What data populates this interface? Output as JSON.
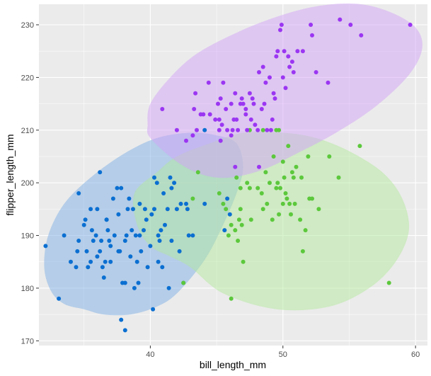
{
  "chart_data": {
    "type": "scatter",
    "title": "",
    "xlabel": "bill_length_mm",
    "ylabel": "flipper_length_mm",
    "xlim": [
      31.6,
      60.9
    ],
    "ylim": [
      169.1,
      233.9
    ],
    "x_ticks": [
      40,
      50,
      60
    ],
    "y_ticks": [
      170,
      180,
      190,
      200,
      210,
      220,
      230
    ],
    "x_tick_labels": [
      "40",
      "50",
      "60"
    ],
    "y_tick_labels": [
      "170",
      "180",
      "190",
      "200",
      "210",
      "220",
      "230"
    ],
    "grid": true,
    "legend": "none",
    "colors": {
      "panel_background": "#ebebeb",
      "grid_major": "#ffffff",
      "tick": "#333333",
      "blue": "#0b6fd1",
      "green": "#5cc83c",
      "purple": "#9b36f2",
      "ellipse_blue": "#7fb0e6",
      "ellipse_green": "#b3ea9e",
      "ellipse_purple": "#d2a4f7"
    },
    "ellipses": [
      {
        "name": "blue",
        "color": "ellipse_blue",
        "center": [
          38.8,
          190.0
        ],
        "points": [
          [
            35.0,
            176.0
          ],
          [
            36.5,
            175.0
          ],
          [
            38.5,
            175.0
          ],
          [
            40.5,
            176.5
          ],
          [
            42.0,
            179.0
          ],
          [
            44.0,
            185.0
          ],
          [
            45.3,
            191.0
          ],
          [
            46.5,
            198.0
          ],
          [
            47.0,
            203.0
          ],
          [
            46.5,
            207.5
          ],
          [
            45.0,
            209.0
          ],
          [
            43.0,
            209.5
          ],
          [
            40.5,
            208.5
          ],
          [
            38.0,
            205.5
          ],
          [
            35.5,
            201.0
          ],
          [
            33.5,
            196.0
          ],
          [
            32.3,
            190.0
          ],
          [
            32.0,
            184.0
          ],
          [
            32.5,
            179.5
          ],
          [
            33.5,
            177.0
          ]
        ]
      },
      {
        "name": "green",
        "color": "ellipse_green",
        "center": [
          48.8,
          193.0
        ],
        "points": [
          [
            43.0,
            184.0
          ],
          [
            45.5,
            179.0
          ],
          [
            49.5,
            176.0
          ],
          [
            53.5,
            176.5
          ],
          [
            56.5,
            180.0
          ],
          [
            58.5,
            185.0
          ],
          [
            59.5,
            191.0
          ],
          [
            59.0,
            197.0
          ],
          [
            57.5,
            202.0
          ],
          [
            55.0,
            206.0
          ],
          [
            52.5,
            208.5
          ],
          [
            50.0,
            209.5
          ],
          [
            47.0,
            209.5
          ],
          [
            44.5,
            207.5
          ],
          [
            42.0,
            205.0
          ],
          [
            40.5,
            202.0
          ],
          [
            38.8,
            198.0
          ],
          [
            39.0,
            192.0
          ],
          [
            40.0,
            188.0
          ],
          [
            41.5,
            186.0
          ]
        ]
      },
      {
        "name": "purple",
        "color": "ellipse_purple",
        "center": [
          48.3,
          216.9
        ],
        "points": [
          [
            40.0,
            208.5
          ],
          [
            42.0,
            204.0
          ],
          [
            44.0,
            201.5
          ],
          [
            46.0,
            201.0
          ],
          [
            48.5,
            202.5
          ],
          [
            51.0,
            205.5
          ],
          [
            54.0,
            209.5
          ],
          [
            57.0,
            214.5
          ],
          [
            59.5,
            220.5
          ],
          [
            60.5,
            225.5
          ],
          [
            60.0,
            229.5
          ],
          [
            58.0,
            232.5
          ],
          [
            55.5,
            234.0
          ],
          [
            52.5,
            233.5
          ],
          [
            49.5,
            231.5
          ],
          [
            46.5,
            228.5
          ],
          [
            43.5,
            224.5
          ],
          [
            41.5,
            220.0
          ],
          [
            40.0,
            215.0
          ],
          [
            39.8,
            211.0
          ]
        ]
      }
    ],
    "series": [
      {
        "name": "blue",
        "color": "blue",
        "points": [
          [
            32.1,
            188
          ],
          [
            33.1,
            178
          ],
          [
            33.5,
            190
          ],
          [
            34.0,
            185
          ],
          [
            34.4,
            184
          ],
          [
            34.5,
            187
          ],
          [
            34.6,
            198
          ],
          [
            34.6,
            189
          ],
          [
            35.0,
            192
          ],
          [
            35.1,
            193
          ],
          [
            35.2,
            187
          ],
          [
            35.3,
            184
          ],
          [
            35.5,
            195
          ],
          [
            35.6,
            191
          ],
          [
            35.7,
            189
          ],
          [
            35.9,
            190
          ],
          [
            36.0,
            195
          ],
          [
            36.0,
            186
          ],
          [
            36.2,
            202
          ],
          [
            36.2,
            187
          ],
          [
            36.4,
            184
          ],
          [
            36.5,
            182
          ],
          [
            36.6,
            185
          ],
          [
            36.7,
            193
          ],
          [
            36.8,
            191
          ],
          [
            36.9,
            189
          ],
          [
            37.0,
            185
          ],
          [
            37.2,
            197
          ],
          [
            37.3,
            190
          ],
          [
            37.5,
            199
          ],
          [
            37.6,
            194
          ],
          [
            37.7,
            187
          ],
          [
            37.8,
            174
          ],
          [
            37.8,
            199
          ],
          [
            37.9,
            181
          ],
          [
            38.1,
            172
          ],
          [
            38.1,
            181
          ],
          [
            38.2,
            190
          ],
          [
            38.3,
            195
          ],
          [
            38.5,
            186
          ],
          [
            38.6,
            191
          ],
          [
            38.7,
            195
          ],
          [
            38.8,
            180
          ],
          [
            38.9,
            190
          ],
          [
            39.0,
            185
          ],
          [
            39.1,
            181
          ],
          [
            39.2,
            196
          ],
          [
            39.3,
            187
          ],
          [
            39.5,
            191
          ],
          [
            39.6,
            195
          ],
          [
            39.7,
            193
          ],
          [
            39.8,
            184
          ],
          [
            40.0,
            188
          ],
          [
            40.1,
            194
          ],
          [
            40.2,
            176
          ],
          [
            40.3,
            195
          ],
          [
            40.5,
            200
          ],
          [
            40.6,
            185
          ],
          [
            40.7,
            189
          ],
          [
            40.8,
            191
          ],
          [
            40.9,
            184
          ],
          [
            41.0,
            198
          ],
          [
            41.1,
            192
          ],
          [
            41.3,
            195
          ],
          [
            41.4,
            180
          ],
          [
            41.5,
            201
          ],
          [
            41.6,
            189
          ],
          [
            41.8,
            200
          ],
          [
            42.0,
            195
          ],
          [
            42.2,
            187
          ],
          [
            42.3,
            196
          ],
          [
            42.5,
            181
          ],
          [
            42.7,
            196
          ],
          [
            42.8,
            195
          ],
          [
            42.9,
            190
          ],
          [
            43.2,
            190
          ],
          [
            44.1,
            210
          ],
          [
            44.1,
            196
          ],
          [
            45.6,
            191
          ],
          [
            45.8,
            197
          ],
          [
            46.0,
            194
          ],
          [
            39.2,
            190
          ],
          [
            38.1,
            189
          ],
          [
            37.6,
            187
          ],
          [
            36.3,
            189
          ],
          [
            37.0,
            188
          ],
          [
            36.7,
            193
          ],
          [
            40.6,
            190
          ],
          [
            35.5,
            185
          ],
          [
            38.4,
            197
          ],
          [
            41.6,
            199
          ],
          [
            40.3,
            201
          ]
        ]
      },
      {
        "name": "green",
        "color": "green",
        "points": [
          [
            42.5,
            181
          ],
          [
            43.2,
            197
          ],
          [
            43.6,
            202
          ],
          [
            45.2,
            198
          ],
          [
            45.5,
            196
          ],
          [
            45.7,
            195
          ],
          [
            45.9,
            190
          ],
          [
            46.1,
            192
          ],
          [
            46.1,
            178
          ],
          [
            46.4,
            191
          ],
          [
            46.5,
            201
          ],
          [
            46.6,
            189
          ],
          [
            46.7,
            193
          ],
          [
            46.8,
            195
          ],
          [
            46.9,
            192
          ],
          [
            47.0,
            185
          ],
          [
            47.3,
            200
          ],
          [
            47.5,
            199
          ],
          [
            47.6,
            193
          ],
          [
            48.1,
            199
          ],
          [
            48.4,
            198
          ],
          [
            48.5,
            195
          ],
          [
            48.7,
            202
          ],
          [
            48.8,
            196
          ],
          [
            49.0,
            200
          ],
          [
            49.2,
            193
          ],
          [
            49.3,
            205
          ],
          [
            49.5,
            199
          ],
          [
            49.6,
            200
          ],
          [
            49.7,
            194
          ],
          [
            49.8,
            199
          ],
          [
            50.0,
            196
          ],
          [
            50.1,
            201
          ],
          [
            50.2,
            198
          ],
          [
            50.3,
            197
          ],
          [
            50.5,
            196
          ],
          [
            50.6,
            194
          ],
          [
            50.7,
            202
          ],
          [
            50.8,
            201
          ],
          [
            50.9,
            196
          ],
          [
            51.0,
            203
          ],
          [
            51.3,
            193
          ],
          [
            51.4,
            201
          ],
          [
            51.5,
            187
          ],
          [
            51.7,
            191
          ],
          [
            51.9,
            205
          ],
          [
            52.0,
            197
          ],
          [
            52.2,
            197
          ],
          [
            52.7,
            195
          ],
          [
            53.5,
            205
          ],
          [
            54.2,
            201
          ],
          [
            55.8,
            207
          ],
          [
            58.0,
            181
          ],
          [
            49.5,
            210
          ],
          [
            50.4,
            207
          ],
          [
            50.0,
            204
          ],
          [
            48.5,
            210
          ],
          [
            46.8,
            199
          ],
          [
            47.5,
            210
          ],
          [
            49.7,
            210
          ]
        ]
      },
      {
        "name": "purple",
        "color": "purple",
        "points": [
          [
            40.9,
            214
          ],
          [
            42.0,
            210
          ],
          [
            42.7,
            208
          ],
          [
            43.2,
            209
          ],
          [
            43.3,
            214
          ],
          [
            43.4,
            217
          ],
          [
            43.5,
            210
          ],
          [
            43.8,
            213
          ],
          [
            44.4,
            219
          ],
          [
            44.5,
            213
          ],
          [
            44.9,
            212
          ],
          [
            45.1,
            215
          ],
          [
            45.2,
            212
          ],
          [
            45.3,
            216
          ],
          [
            45.4,
            211
          ],
          [
            45.5,
            219
          ],
          [
            45.7,
            214
          ],
          [
            45.8,
            210
          ],
          [
            46.1,
            215
          ],
          [
            46.2,
            210
          ],
          [
            46.3,
            212
          ],
          [
            46.4,
            217
          ],
          [
            46.5,
            212
          ],
          [
            46.6,
            210
          ],
          [
            46.8,
            215
          ],
          [
            46.9,
            216
          ],
          [
            47.0,
            215
          ],
          [
            47.2,
            213
          ],
          [
            47.3,
            210
          ],
          [
            47.5,
            217
          ],
          [
            47.6,
            212
          ],
          [
            47.7,
            216
          ],
          [
            47.8,
            215
          ],
          [
            48.1,
            210
          ],
          [
            48.2,
            221
          ],
          [
            48.4,
            214
          ],
          [
            48.5,
            222
          ],
          [
            48.6,
            215
          ],
          [
            48.7,
            219
          ],
          [
            48.8,
            210
          ],
          [
            49.0,
            220
          ],
          [
            49.1,
            210
          ],
          [
            49.2,
            212
          ],
          [
            49.3,
            217
          ],
          [
            49.4,
            216
          ],
          [
            49.5,
            224
          ],
          [
            49.6,
            225
          ],
          [
            49.8,
            229
          ],
          [
            49.9,
            230
          ],
          [
            50.0,
            220
          ],
          [
            50.1,
            225
          ],
          [
            50.2,
            218
          ],
          [
            50.4,
            224
          ],
          [
            50.5,
            222
          ],
          [
            50.7,
            223
          ],
          [
            50.8,
            221
          ],
          [
            51.1,
            225
          ],
          [
            51.5,
            225
          ],
          [
            52.1,
            230
          ],
          [
            52.2,
            228
          ],
          [
            52.5,
            221
          ],
          [
            53.4,
            219
          ],
          [
            54.3,
            231
          ],
          [
            55.1,
            230
          ],
          [
            55.9,
            228
          ],
          [
            59.6,
            230
          ],
          [
            46.4,
            203
          ],
          [
            47.2,
            214
          ],
          [
            46.1,
            209
          ],
          [
            45.2,
            210
          ],
          [
            48.2,
            203
          ],
          [
            44.0,
            213
          ],
          [
            45.3,
            208
          ],
          [
            47.9,
            211
          ]
        ]
      }
    ]
  }
}
